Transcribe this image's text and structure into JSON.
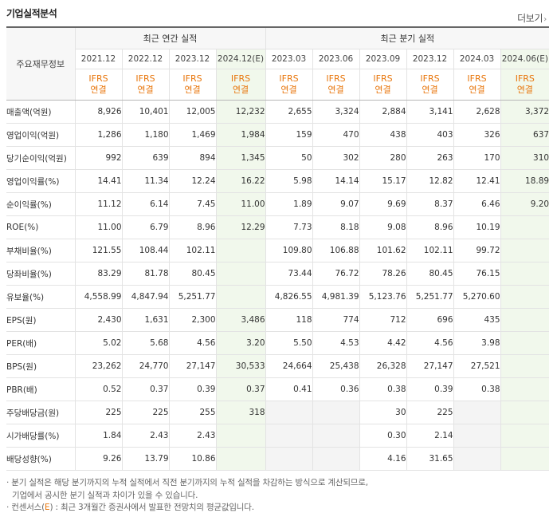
{
  "page": {
    "title": "기업실적분석",
    "more_label": "더보기"
  },
  "table": {
    "stub_label": "주요재무정보",
    "annual_header": "최근 연간 실적",
    "quarter_header": "최근 분기 실적",
    "ifrs_line1": "IFRS",
    "ifrs_line2": "연결",
    "annual_periods": [
      "2021.12",
      "2022.12",
      "2023.12",
      "2024.12(E)"
    ],
    "quarter_periods": [
      "2023.03",
      "2023.06",
      "2023.09",
      "2023.12",
      "2024.03",
      "2024.06(E)"
    ],
    "rows": [
      {
        "label": "매출액(억원)",
        "annual": [
          "8,926",
          "10,401",
          "12,005",
          "12,232"
        ],
        "quarter": [
          "2,655",
          "3,324",
          "2,884",
          "3,141",
          "2,628",
          "3,372"
        ]
      },
      {
        "label": "영업이익(억원)",
        "annual": [
          "1,286",
          "1,180",
          "1,469",
          "1,984"
        ],
        "quarter": [
          "159",
          "470",
          "438",
          "403",
          "326",
          "637"
        ]
      },
      {
        "label": "당기순이익(억원)",
        "annual": [
          "992",
          "639",
          "894",
          "1,345"
        ],
        "quarter": [
          "50",
          "302",
          "280",
          "263",
          "170",
          "310"
        ]
      },
      {
        "label": "영업이익률(%)",
        "annual": [
          "14.41",
          "11.34",
          "12.24",
          "16.22"
        ],
        "quarter": [
          "5.98",
          "14.14",
          "15.17",
          "12.82",
          "12.41",
          "18.89"
        ]
      },
      {
        "label": "순이익률(%)",
        "annual": [
          "11.12",
          "6.14",
          "7.45",
          "11.00"
        ],
        "quarter": [
          "1.89",
          "9.07",
          "9.69",
          "8.37",
          "6.46",
          "9.20"
        ]
      },
      {
        "label": "ROE(%)",
        "annual": [
          "11.00",
          "6.79",
          "8.96",
          "12.29"
        ],
        "quarter": [
          "7.73",
          "8.18",
          "9.08",
          "8.96",
          "10.19",
          ""
        ]
      },
      {
        "label": "부채비율(%)",
        "annual": [
          "121.55",
          "108.44",
          "102.11",
          ""
        ],
        "quarter": [
          "109.80",
          "106.88",
          "101.62",
          "102.11",
          "99.72",
          ""
        ]
      },
      {
        "label": "당좌비율(%)",
        "annual": [
          "83.29",
          "81.78",
          "80.45",
          ""
        ],
        "quarter": [
          "73.44",
          "76.72",
          "78.26",
          "80.45",
          "76.15",
          ""
        ]
      },
      {
        "label": "유보율(%)",
        "annual": [
          "4,558.99",
          "4,847.94",
          "5,251.77",
          ""
        ],
        "quarter": [
          "4,826.55",
          "4,981.39",
          "5,123.76",
          "5,251.77",
          "5,270.60",
          ""
        ]
      },
      {
        "label": "EPS(원)",
        "annual": [
          "2,430",
          "1,631",
          "2,300",
          "3,486"
        ],
        "quarter": [
          "118",
          "774",
          "712",
          "696",
          "435",
          ""
        ]
      },
      {
        "label": "PER(배)",
        "annual": [
          "5.02",
          "5.68",
          "4.56",
          "3.20"
        ],
        "quarter": [
          "5.50",
          "4.53",
          "4.42",
          "4.56",
          "3.98",
          ""
        ]
      },
      {
        "label": "BPS(원)",
        "annual": [
          "23,262",
          "24,770",
          "27,147",
          "30,533"
        ],
        "quarter": [
          "24,664",
          "25,438",
          "26,328",
          "27,147",
          "27,521",
          ""
        ]
      },
      {
        "label": "PBR(배)",
        "annual": [
          "0.52",
          "0.37",
          "0.39",
          "0.37"
        ],
        "quarter": [
          "0.41",
          "0.36",
          "0.38",
          "0.39",
          "0.38",
          ""
        ]
      },
      {
        "label": "주당배당금(원)",
        "annual": [
          "225",
          "225",
          "255",
          "318"
        ],
        "quarter": [
          "",
          "",
          "30",
          "225",
          "",
          ""
        ]
      },
      {
        "label": "시가배당률(%)",
        "annual": [
          "1.84",
          "2.43",
          "2.43",
          ""
        ],
        "quarter": [
          "",
          "",
          "0.30",
          "2.14",
          "",
          ""
        ]
      },
      {
        "label": "배당성향(%)",
        "annual": [
          "9.26",
          "13.79",
          "10.86",
          ""
        ],
        "quarter": [
          "",
          "",
          "4.16",
          "31.65",
          "",
          ""
        ]
      }
    ]
  },
  "footnotes": {
    "line1": "분기 실적은 해당 분기까지의 누적 실적에서 직전 분기까지의 누적 실적을 차감하는 방식으로 계산되므로,",
    "line2": "기업에서 공시한 분기 실적과 차이가 있을 수 있습니다.",
    "line3_prefix": "컨센서스(",
    "line3_e": "E",
    "line3_suffix": ") : 최근 3개월간 증권사에서 발표한 전망치의 평균값입니다."
  },
  "colors": {
    "accent_orange": "#e8760c",
    "estimate_bg": "#f1f8ec",
    "header_bg": "#f7f7f7"
  }
}
